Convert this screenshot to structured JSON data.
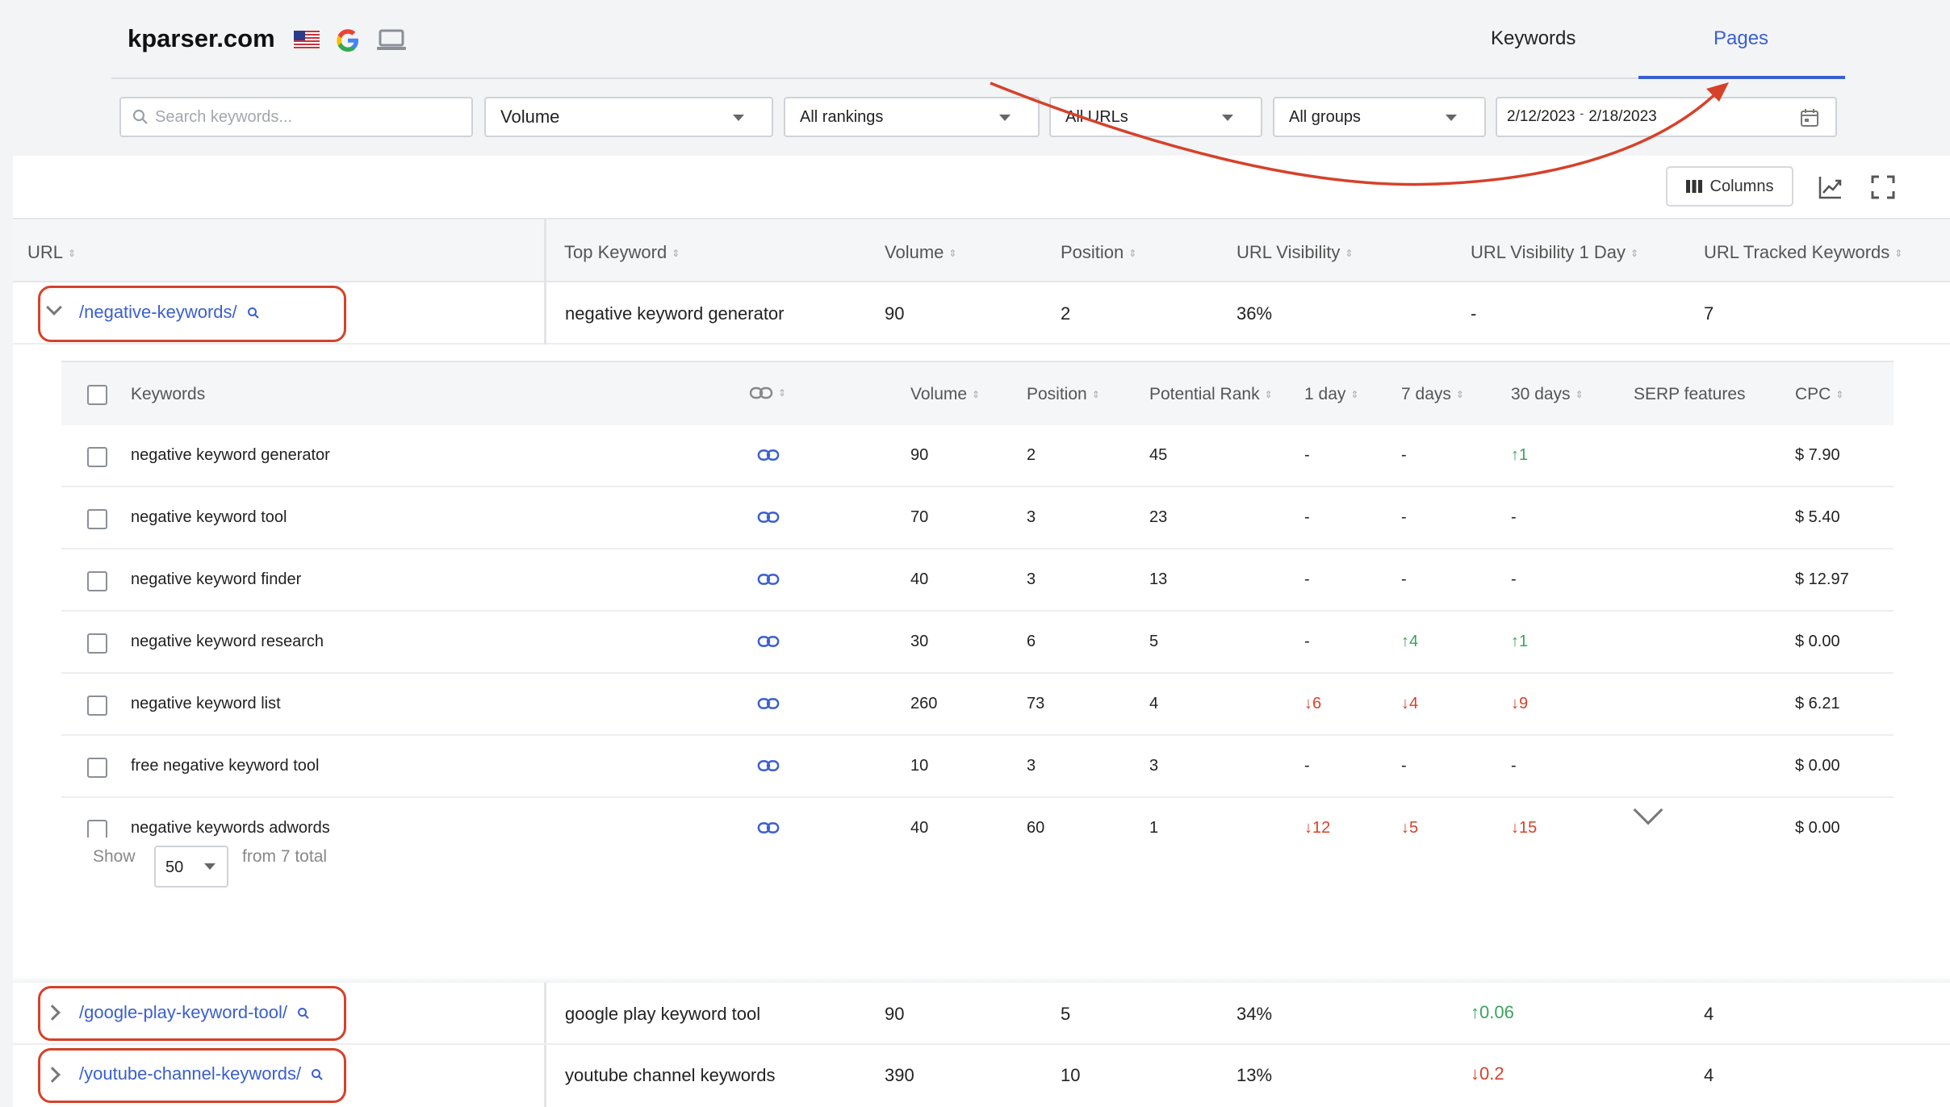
{
  "header": {
    "brand": "kparser.com",
    "tabs": [
      {
        "label": "Keywords",
        "active": false
      },
      {
        "label": "Pages",
        "active": true
      }
    ]
  },
  "filters": {
    "search_placeholder": "Search keywords...",
    "volume": "Volume",
    "rankings": "All rankings",
    "urls": "All URLs",
    "groups": "All groups",
    "date_from": "2/12/2023",
    "date_sep": "-",
    "date_to": "2/18/2023"
  },
  "toolbar": {
    "columns_label": "Columns"
  },
  "colors": {
    "accent": "#3a5fcf",
    "annotation": "#d6412a",
    "up": "#3aa45b",
    "down": "#d6412a"
  },
  "main_table": {
    "headers": [
      "URL",
      "Top Keyword",
      "Volume",
      "Position",
      "URL Visibility",
      "URL Visibility 1 Day",
      "URL Tracked Keywords"
    ],
    "rows": [
      {
        "url": "/negative-keywords/",
        "top_keyword": "negative keyword generator",
        "volume": "90",
        "position": "2",
        "visibility": "36%",
        "visibility_1d": "-",
        "tracked": "7",
        "expanded": true
      },
      {
        "url": "/google-play-keyword-tool/",
        "top_keyword": "google play keyword tool",
        "volume": "90",
        "position": "5",
        "visibility": "34%",
        "visibility_1d": "0.06",
        "visibility_1d_dir": "up",
        "tracked": "4",
        "expanded": false
      },
      {
        "url": "/youtube-channel-keywords/",
        "top_keyword": "youtube channel keywords",
        "volume": "390",
        "position": "10",
        "visibility": "13%",
        "visibility_1d": "0.2",
        "visibility_1d_dir": "down",
        "tracked": "4",
        "expanded": false
      }
    ]
  },
  "inner_table": {
    "headers": {
      "keywords": "Keywords",
      "volume": "Volume",
      "position": "Position",
      "potential_rank": "Potential Rank",
      "d1": "1 day",
      "d7": "7 days",
      "d30": "30 days",
      "serp": "SERP features",
      "cpc": "CPC"
    },
    "rows": [
      {
        "keyword": "negative keyword generator",
        "volume": "90",
        "position": "2",
        "potential": "45",
        "d1": "-",
        "d7": "-",
        "d30": "1",
        "d30_dir": "up",
        "cpc": "$ 7.90"
      },
      {
        "keyword": "negative keyword tool",
        "volume": "70",
        "position": "3",
        "potential": "23",
        "d1": "-",
        "d7": "-",
        "d30": "-",
        "cpc": "$ 5.40"
      },
      {
        "keyword": "negative keyword finder",
        "volume": "40",
        "position": "3",
        "potential": "13",
        "d1": "-",
        "d7": "-",
        "d30": "-",
        "cpc": "$ 12.97"
      },
      {
        "keyword": "negative keyword research",
        "volume": "30",
        "position": "6",
        "potential": "5",
        "d1": "-",
        "d7": "4",
        "d7_dir": "up",
        "d30": "1",
        "d30_dir": "up",
        "cpc": "$ 0.00"
      },
      {
        "keyword": "negative keyword list",
        "volume": "260",
        "position": "73",
        "potential": "4",
        "d1": "6",
        "d1_dir": "down",
        "d7": "4",
        "d7_dir": "down",
        "d30": "9",
        "d30_dir": "down",
        "cpc": "$ 6.21"
      },
      {
        "keyword": "free negative keyword tool",
        "volume": "10",
        "position": "3",
        "potential": "3",
        "d1": "-",
        "d7": "-",
        "d30": "-",
        "cpc": "$ 0.00"
      },
      {
        "keyword": "negative keywords adwords",
        "volume": "40",
        "position": "60",
        "potential": "1",
        "d1": "12",
        "d1_dir": "down",
        "d7": "5",
        "d7_dir": "down",
        "d30": "15",
        "d30_dir": "down",
        "cpc": "$ 0.00"
      }
    ]
  },
  "pagination": {
    "show_label": "Show",
    "page_size": "50",
    "total_label": "from 7 total"
  }
}
